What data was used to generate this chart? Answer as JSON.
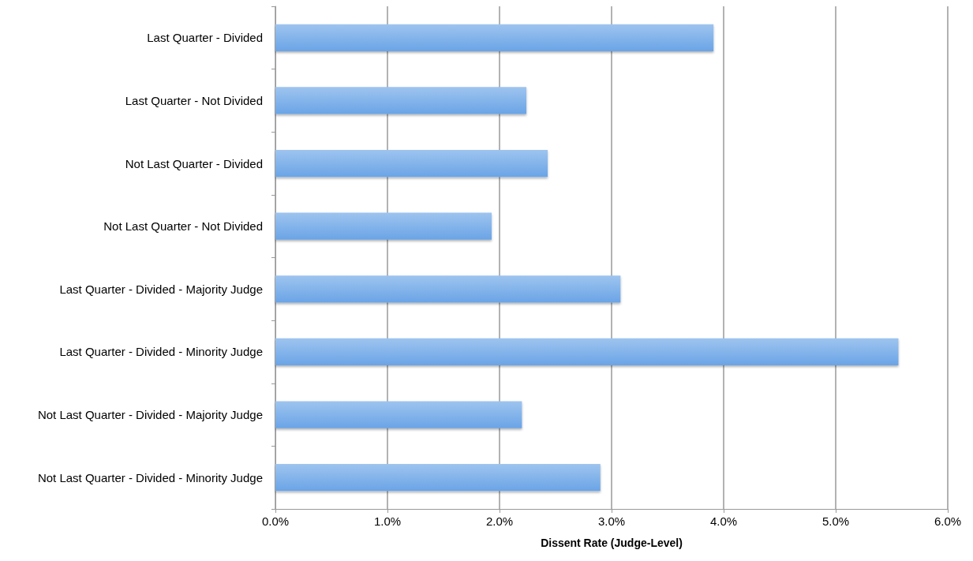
{
  "chart_data": {
    "type": "bar",
    "orientation": "horizontal",
    "xlabel": "Dissent Rate (Judge-Level)",
    "categories": [
      "Last Quarter - Divided",
      "Last Quarter - Not Divided",
      "Not Last Quarter - Divided",
      "Not Last Quarter - Not Divided",
      "Last Quarter - Divided - Majority Judge",
      "Last Quarter - Divided - Minority Judge",
      "Not Last Quarter - Divided - Majority Judge",
      "Not Last Quarter - Divided - Minority Judge"
    ],
    "values": [
      3.91,
      2.24,
      2.43,
      1.93,
      3.08,
      5.56,
      2.2,
      2.9
    ],
    "color": "#6aa4e6",
    "xlim": [
      0,
      6
    ],
    "xticks": [
      {
        "value": 0,
        "label": "0.0%"
      },
      {
        "value": 1,
        "label": "1.0%"
      },
      {
        "value": 2,
        "label": "2.0%"
      },
      {
        "value": 3,
        "label": "3.0%"
      },
      {
        "value": 4,
        "label": "4.0%"
      },
      {
        "value": 5,
        "label": "5.0%"
      },
      {
        "value": 6,
        "label": "6.0%"
      }
    ],
    "grid": "x"
  }
}
